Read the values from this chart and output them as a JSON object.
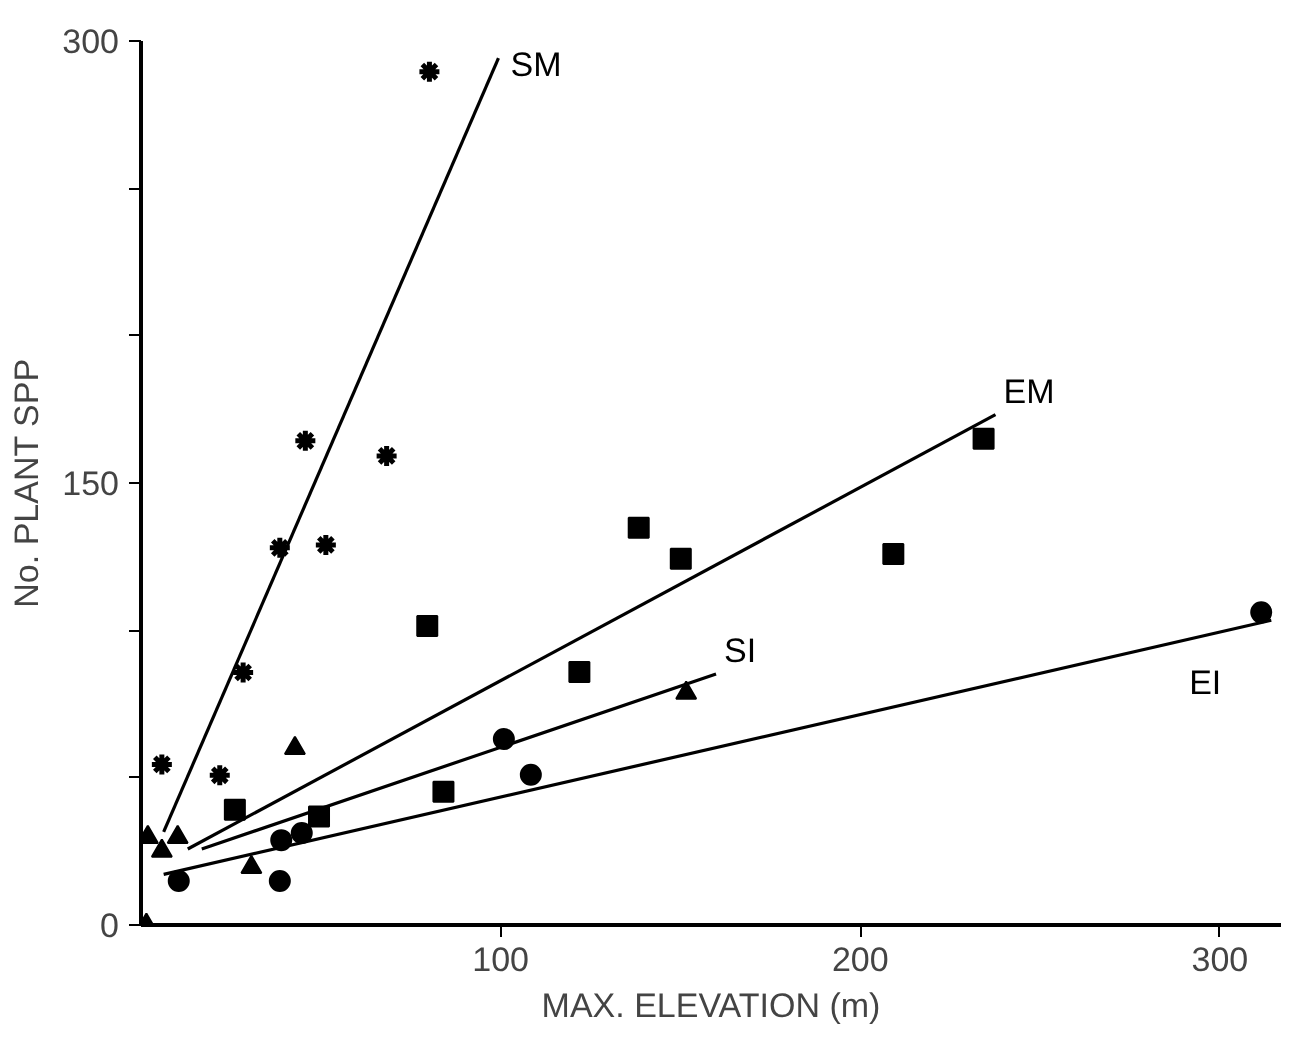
{
  "chart_data": {
    "type": "scatter",
    "xlabel": "MAX. ELEVATION (m)",
    "ylabel": "No. PLANT SPP",
    "xlim": [
      0,
      317
    ],
    "ylim": [
      0,
      300
    ],
    "xticks": [
      100,
      200,
      300
    ],
    "yticks": [
      0,
      {
        "value": 50,
        "label": null
      },
      {
        "value": 100,
        "label": null
      },
      150,
      {
        "value": 200,
        "label": null
      },
      {
        "value": 250,
        "label": null
      },
      300
    ],
    "grid": false,
    "series": [
      {
        "marker": "cross",
        "color": "#000000",
        "x": [
          80.2,
          45.7,
          68.3,
          38.6,
          51.4,
          28.4,
          5.8,
          21.9
        ],
        "values": [
          289.6,
          164.3,
          159.2,
          128,
          129,
          85.7,
          54.5,
          50.8
        ]
      },
      {
        "marker": "square",
        "color": "#000000",
        "x": [
          79.6,
          26.1,
          49.5,
          84.1,
          138.4,
          150.1,
          121.9,
          209.2,
          234.3
        ],
        "values": [
          101.5,
          39.1,
          36.8,
          45.2,
          134.8,
          124.3,
          85.9,
          125.9,
          165
        ]
      },
      {
        "marker": "circle",
        "color": "#000000",
        "x": [
          10.5,
          38.6,
          39,
          44.7,
          100.9,
          108.4,
          311.5
        ],
        "values": [
          14.9,
          14.9,
          28.8,
          31.2,
          63.1,
          51,
          106.1
        ]
      },
      {
        "marker": "triangle",
        "color": "#000000",
        "x": [
          1.5,
          1.9,
          5.8,
          10.2,
          30.7,
          42.8,
          151.6
        ],
        "values": [
          0,
          29.8,
          25.1,
          29.8,
          19.6,
          60,
          78.7
        ]
      },
      {
        "type": "line",
        "name": "SM",
        "color": "#000000",
        "line_style": "solid",
        "x": [
          6.3,
          99.4
        ],
        "values": [
          31.6,
          294.2
        ]
      },
      {
        "type": "line",
        "name": "EM",
        "color": "#000000",
        "line_style": "solid",
        "x": [
          13,
          237.6
        ],
        "values": [
          25.8,
          173.2
        ]
      },
      {
        "type": "line",
        "name": "SI",
        "color": "#000000",
        "line_style": "solid",
        "x": [
          16.9,
          159.9
        ],
        "values": [
          25.8,
          85.2
        ]
      },
      {
        "type": "line",
        "name": "EI",
        "color": "#000000",
        "line_style": "solid",
        "x": [
          6.3,
          314.3
        ],
        "values": [
          17.2,
          103.4
        ]
      }
    ]
  }
}
